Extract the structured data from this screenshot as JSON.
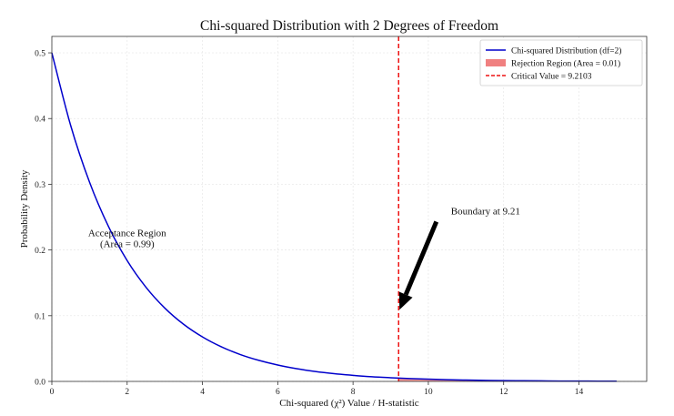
{
  "chart_data": {
    "type": "line",
    "title": "Chi-squared Distribution with 2 Degrees of Freedom",
    "xlabel": "Chi-squared (χ²) Value / H-statistic",
    "ylabel": "Probability Density",
    "xlim": [
      0,
      15.8
    ],
    "ylim": [
      0,
      0.525
    ],
    "xticks": [
      0,
      2,
      4,
      6,
      8,
      10,
      12,
      14
    ],
    "yticks": [
      0.0,
      0.1,
      0.2,
      0.3,
      0.4,
      0.5
    ],
    "xtick_labels": [
      "0",
      "2",
      "4",
      "6",
      "8",
      "10",
      "12",
      "14"
    ],
    "ytick_labels": [
      "0.0",
      "0.1",
      "0.2",
      "0.3",
      "0.4",
      "0.5"
    ],
    "grid": true,
    "legend_position": "top-right",
    "series": [
      {
        "name": "Chi-squared Distribution (df=2)",
        "color": "#0000cc",
        "x": [
          0,
          0.5,
          1,
          1.5,
          2,
          2.5,
          3,
          3.5,
          4,
          4.5,
          5,
          5.5,
          6,
          6.5,
          7,
          7.5,
          8,
          8.5,
          9,
          9.5,
          10,
          10.5,
          11,
          11.5,
          12,
          12.5,
          13,
          13.5,
          14,
          14.5,
          15
        ],
        "y": [
          0.5,
          0.3894,
          0.3033,
          0.2362,
          0.1839,
          0.1433,
          0.1116,
          0.0869,
          0.0677,
          0.0527,
          0.041,
          0.032,
          0.0249,
          0.0194,
          0.0151,
          0.0118,
          0.0092,
          0.0071,
          0.0056,
          0.0043,
          0.0034,
          0.0026,
          0.002,
          0.0016,
          0.0012,
          0.001,
          0.0008,
          0.0006,
          0.0005,
          0.0004,
          0.0003
        ]
      }
    ],
    "rejection_region": {
      "name": "Rejection Region (Area = 0.01)",
      "x_start": 9.2103,
      "x_end": 15,
      "color": "#f08080"
    },
    "critical_value": {
      "name": "Critical Value = 9.2103",
      "x": 9.2103,
      "color": "#ee1111"
    },
    "annotations": [
      {
        "line1": "Acceptance Region",
        "line2": "(Area = 0.99)",
        "x": 2.0,
        "y": 0.225
      },
      {
        "text": "Boundary at 9.21",
        "text_x": 10.6,
        "text_y": 0.25,
        "arrow_to_x": 9.21,
        "arrow_to_y": 0.105
      }
    ]
  }
}
